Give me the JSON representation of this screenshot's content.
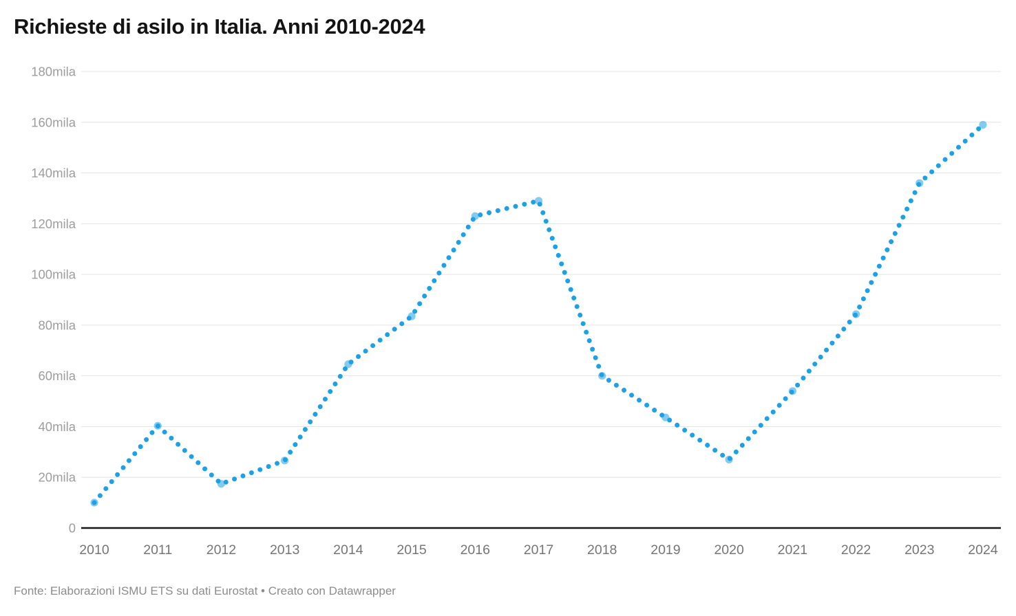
{
  "header": {
    "title": "Richieste di asilo in Italia. Anni 2010-2024"
  },
  "footer": {
    "source": "Fonte: Elaborazioni ISMU ETS su dati Eurostat",
    "separator": " • ",
    "credit": "Creato con Datawrapper"
  },
  "colors": {
    "line": "#1da1e6",
    "marker": "#1da1e6",
    "grid": "#e4e4e4",
    "baseline": "#181818",
    "title_text": "#141414",
    "y_tick_text": "#9d9d9d",
    "x_tick_text": "#757575",
    "footer_text": "#8c8c8c",
    "background": "#ffffff"
  },
  "chart_data": {
    "type": "line",
    "line_style": "dotted",
    "title": "Richieste di asilo in Italia. Anni 2010-2024",
    "x": [
      2010,
      2011,
      2012,
      2013,
      2014,
      2015,
      2016,
      2017,
      2018,
      2019,
      2020,
      2021,
      2022,
      2023,
      2024
    ],
    "values": [
      10,
      40.3,
      17.4,
      26.6,
      64.6,
      83.5,
      123,
      129,
      60,
      43.6,
      27,
      54,
      84.3,
      136,
      159
    ],
    "unit": "mila (thousands of asylum requests)",
    "xlabel": "",
    "ylabel": "",
    "ylim": [
      0,
      180
    ],
    "y_ticks": [
      0,
      20,
      40,
      60,
      80,
      100,
      120,
      140,
      160,
      180
    ],
    "y_tick_labels": [
      "0",
      "20mila",
      "40mila",
      "60mila",
      "80mila",
      "100mila",
      "120mila",
      "140mila",
      "160mila",
      "180mila"
    ],
    "x_tick_labels": [
      "2010",
      "2011",
      "2012",
      "2013",
      "2014",
      "2015",
      "2016",
      "2017",
      "2018",
      "2019",
      "2020",
      "2021",
      "2022",
      "2023",
      "2024"
    ],
    "grid": true,
    "legend": false,
    "markers_on_points": true
  }
}
